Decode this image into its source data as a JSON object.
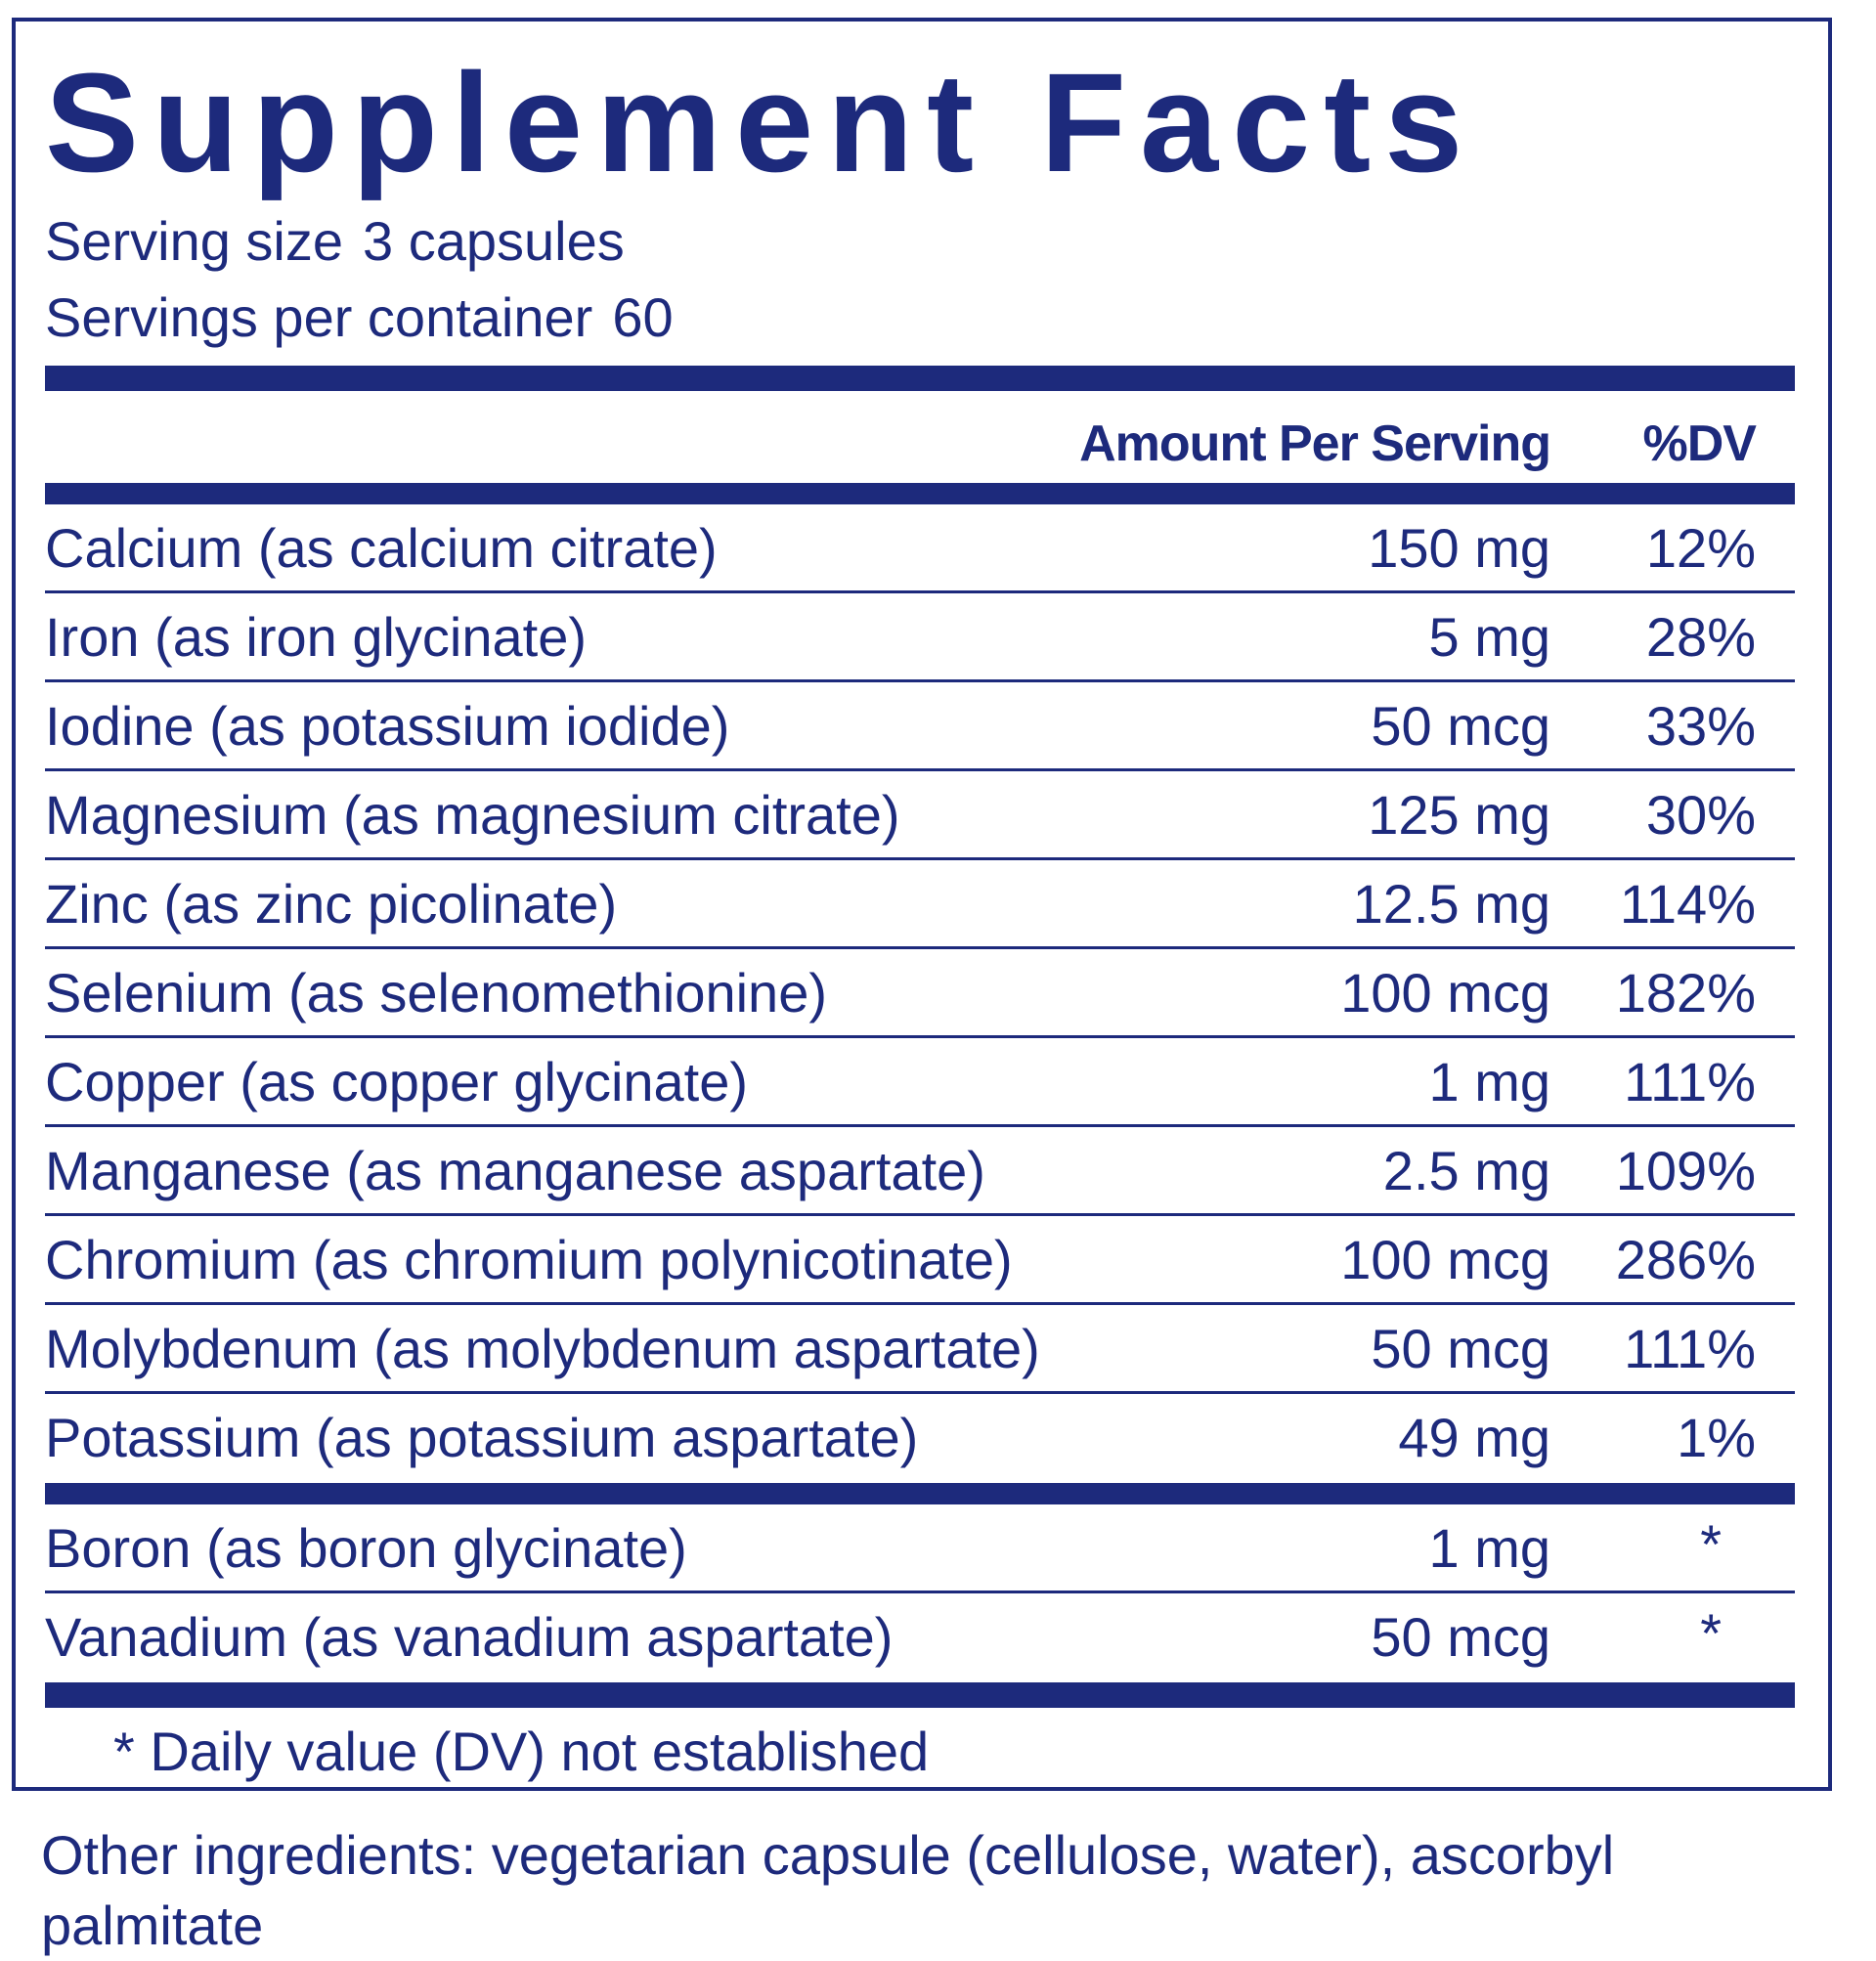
{
  "title": "Supplement Facts",
  "serving": {
    "size_label": "Serving size",
    "size_value": "3 capsules",
    "per_container_label": "Servings per container",
    "per_container_value": "60"
  },
  "headers": {
    "amount": "Amount Per Serving",
    "dv": "%DV"
  },
  "nutrients": [
    {
      "name": "Calcium (as calcium citrate)",
      "amount": "150 mg",
      "dv": "12%"
    },
    {
      "name": "Iron (as iron glycinate)",
      "amount": "5 mg",
      "dv": "28%"
    },
    {
      "name": "Iodine (as potassium iodide)",
      "amount": "50 mcg",
      "dv": "33%"
    },
    {
      "name": "Magnesium (as magnesium citrate)",
      "amount": "125 mg",
      "dv": "30%"
    },
    {
      "name": "Zinc (as zinc picolinate)",
      "amount": "12.5 mg",
      "dv": "114%"
    },
    {
      "name": "Selenium (as selenomethionine)",
      "amount": "100 mcg",
      "dv": "182%"
    },
    {
      "name": "Copper (as copper glycinate)",
      "amount": "1 mg",
      "dv": "111%"
    },
    {
      "name": "Manganese (as manganese aspartate)",
      "amount": "2.5 mg",
      "dv": "109%"
    },
    {
      "name": "Chromium (as chromium polynicotinate)",
      "amount": "100 mcg",
      "dv": "286%"
    },
    {
      "name": "Molybdenum (as molybdenum aspartate)",
      "amount": "50 mcg",
      "dv": "111%"
    },
    {
      "name": "Potassium (as potassium aspartate)",
      "amount": "49 mg",
      "dv": "1%"
    }
  ],
  "other_nutrients": [
    {
      "name": "Boron (as boron glycinate)",
      "amount": "1 mg",
      "dv": "*"
    },
    {
      "name": "Vanadium (as vanadium aspartate)",
      "amount": "50 mcg",
      "dv": "*"
    }
  ],
  "footnote": "* Daily value (DV) not established",
  "other_ingredients": "Other ingredients: vegetarian capsule (cellulose, water), ascorbyl palmitate",
  "colors": {
    "ink": "#1d2a7c",
    "background": "#ffffff"
  }
}
